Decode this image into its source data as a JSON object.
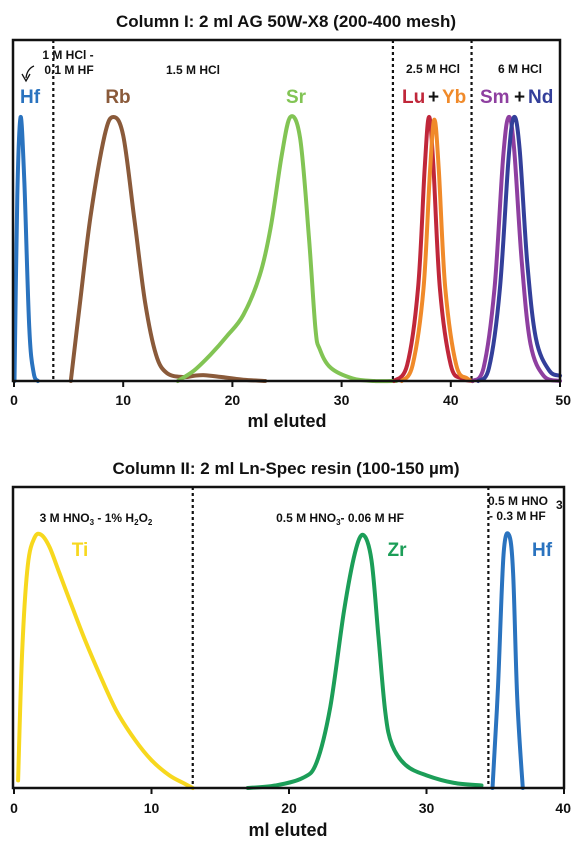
{
  "chart_data": [
    {
      "type": "line",
      "title": "Column I: 2 ml AG 50W-X8 (200-400 mesh)",
      "xlabel": "ml eluted",
      "ylabel": "",
      "xlim": [
        0,
        50
      ],
      "xticks": [
        "0",
        "10",
        "20",
        "30",
        "40",
        "50"
      ],
      "dividers": [
        3.6,
        34.7,
        41.9
      ],
      "regions": [
        {
          "label_line1": "1 M HCl -",
          "label_line2": "0.1 M HF"
        },
        {
          "label": "1.5 M HCl"
        },
        {
          "label": "2.5 M HCl"
        },
        {
          "label": "6 M HCl"
        }
      ],
      "series": [
        {
          "name": "Hf",
          "color": "#2a73bf",
          "x": [
            0.05,
            0.3,
            0.6,
            0.95,
            1.4,
            1.8,
            2.2
          ],
          "y": [
            0.0,
            0.7,
            1.0,
            0.75,
            0.2,
            0.03,
            0.0
          ]
        },
        {
          "name": "Rb",
          "color": "#8a5a3a",
          "x": [
            5.2,
            6.0,
            7.0,
            8.3,
            9.1,
            10.0,
            11.0,
            12.0,
            13.0,
            14.0,
            15.5,
            16.5,
            17.5,
            19.0,
            21.0,
            23.0
          ],
          "y": [
            0.0,
            0.28,
            0.62,
            0.93,
            1.0,
            0.93,
            0.62,
            0.3,
            0.1,
            0.03,
            0.015,
            0.02,
            0.022,
            0.015,
            0.005,
            0.0
          ]
        },
        {
          "name": "Sr",
          "color": "#82c454",
          "x": [
            15.0,
            16.5,
            18.0,
            19.5,
            21.0,
            22.5,
            23.5,
            24.5,
            25.3,
            26.2,
            27.0,
            27.6,
            28.0,
            29.0,
            31.0,
            33.0,
            35.0
          ],
          "y": [
            0.0,
            0.04,
            0.1,
            0.17,
            0.25,
            0.4,
            0.58,
            0.85,
            1.0,
            0.92,
            0.55,
            0.2,
            0.12,
            0.05,
            0.01,
            0.0,
            0.0
          ]
        },
        {
          "name": "Lu",
          "color": "#c0273a",
          "x": [
            34.8,
            36.0,
            37.0,
            37.6,
            38.0,
            38.4,
            39.0,
            40.0,
            41.0,
            42.0
          ],
          "y": [
            0.0,
            0.06,
            0.35,
            0.8,
            1.0,
            0.82,
            0.35,
            0.06,
            0.01,
            0.0
          ]
        },
        {
          "name": "Yb",
          "color": "#f08a2a",
          "x": [
            35.5,
            36.5,
            37.5,
            38.1,
            38.5,
            38.9,
            39.5,
            40.5,
            41.5,
            42.0
          ],
          "y": [
            0.0,
            0.06,
            0.35,
            0.8,
            0.99,
            0.8,
            0.35,
            0.06,
            0.01,
            0.0
          ]
        },
        {
          "name": "Sm",
          "color": "#8e3fa0",
          "x": [
            42.0,
            43.0,
            44.0,
            44.8,
            45.3,
            45.8,
            46.5,
            47.3,
            48.5,
            50.0
          ],
          "y": [
            0.0,
            0.05,
            0.35,
            0.85,
            1.0,
            0.88,
            0.45,
            0.14,
            0.02,
            0.0
          ]
        },
        {
          "name": "Nd",
          "color": "#333f9a",
          "x": [
            42.5,
            43.5,
            44.5,
            45.3,
            45.8,
            46.3,
            47.0,
            47.8,
            49.0,
            50.0
          ],
          "y": [
            0.0,
            0.05,
            0.35,
            0.85,
            1.0,
            0.88,
            0.45,
            0.16,
            0.04,
            0.02
          ]
        }
      ],
      "peak_labels": [
        {
          "text": "Hf",
          "color": "#2a73bf"
        },
        {
          "text": "Rb",
          "color": "#8a5a3a"
        },
        {
          "text": "Sr",
          "color": "#82c454"
        },
        {
          "text": "Lu",
          "color": "#c0273a"
        },
        {
          "text": "+",
          "color": "#111111"
        },
        {
          "text": "Yb",
          "color": "#f08a2a"
        },
        {
          "text": "Sm",
          "color": "#8e3fa0"
        },
        {
          "text": "+",
          "color": "#111111"
        },
        {
          "text": "Nd",
          "color": "#333f9a"
        }
      ]
    },
    {
      "type": "line",
      "title": "Column II: 2 ml Ln-Spec resin (100-150 µm)",
      "xlabel": "ml eluted",
      "ylabel": "",
      "xlim": [
        0,
        40
      ],
      "xticks": [
        "0",
        "10",
        "20",
        "30",
        "40"
      ],
      "dividers": [
        13.0,
        34.5
      ],
      "regions": [
        {
          "label_parts": [
            "3 M HNO",
            "3",
            " - 1% H",
            "2",
            "O",
            "2"
          ]
        },
        {
          "label_parts": [
            "0.5 M HNO",
            "3",
            "- 0.06 M HF"
          ]
        },
        {
          "label_line1": "0.5 M HNO",
          "label_line1_sub": "3",
          "label_line2": "- 0.3 M HF"
        }
      ],
      "series": [
        {
          "name": "Ti",
          "color": "#f7d81e",
          "x": [
            0.3,
            0.6,
            1.0,
            1.5,
            2.0,
            2.6,
            3.3,
            4.2,
            5.2,
            6.3,
            7.5,
            8.8,
            10.0,
            11.3,
            12.3,
            13.0
          ],
          "y": [
            0.03,
            0.55,
            0.88,
            0.99,
            1.0,
            0.95,
            0.85,
            0.72,
            0.58,
            0.44,
            0.3,
            0.19,
            0.11,
            0.05,
            0.02,
            0.0
          ]
        },
        {
          "name": "Zr",
          "color": "#1c9e58",
          "x": [
            17.0,
            19.0,
            21.0,
            22.0,
            23.0,
            24.0,
            24.8,
            25.4,
            26.0,
            26.5,
            27.0,
            27.5,
            28.5,
            30.0,
            32.0,
            34.0
          ],
          "y": [
            0.0,
            0.01,
            0.04,
            0.1,
            0.32,
            0.7,
            0.93,
            1.0,
            0.9,
            0.6,
            0.3,
            0.17,
            0.09,
            0.05,
            0.02,
            0.01
          ]
        },
        {
          "name": "Hf",
          "color": "#2a73bf",
          "x": [
            34.8,
            35.2,
            35.6,
            36.0,
            36.3,
            36.6,
            37.0
          ],
          "y": [
            0.0,
            0.4,
            0.92,
            1.0,
            0.85,
            0.35,
            0.0
          ]
        }
      ],
      "peak_labels": [
        {
          "text": "Ti",
          "color": "#f7d81e"
        },
        {
          "text": "Zr",
          "color": "#1c9e58"
        },
        {
          "text": "Hf",
          "color": "#2a73bf"
        }
      ]
    }
  ]
}
